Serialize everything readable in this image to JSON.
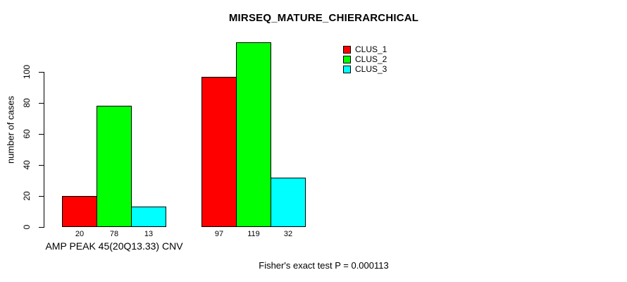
{
  "figure": {
    "background": "#ffffff",
    "text_color": "#000000",
    "axis_color": "#000000"
  },
  "chart_data": {
    "type": "bar",
    "title": "MIRSEQ_MATURE_CHIERARCHICAL",
    "ylabel": "number of cases",
    "xlabel": "",
    "categories": [
      "AMP PEAK 45(20Q13.33) CNV",
      ""
    ],
    "series": [
      {
        "name": "CLUS_1",
        "color": "#ff0000",
        "values": [
          20,
          97
        ]
      },
      {
        "name": "CLUS_2",
        "color": "#00ff00",
        "values": [
          78,
          119
        ]
      },
      {
        "name": "CLUS_3",
        "color": "#00ffff",
        "values": [
          13,
          32
        ]
      }
    ],
    "bar_value_labels": [
      [
        "20",
        "78",
        "13"
      ],
      [
        "97",
        "119",
        "32"
      ]
    ],
    "yticks": [
      0,
      20,
      40,
      60,
      80,
      100
    ],
    "ylim": [
      0,
      125
    ],
    "grid": false,
    "bar_border_color": "#000000",
    "legend_position": "top-right",
    "annotation": "Fisher's exact test P = 0.000113"
  }
}
